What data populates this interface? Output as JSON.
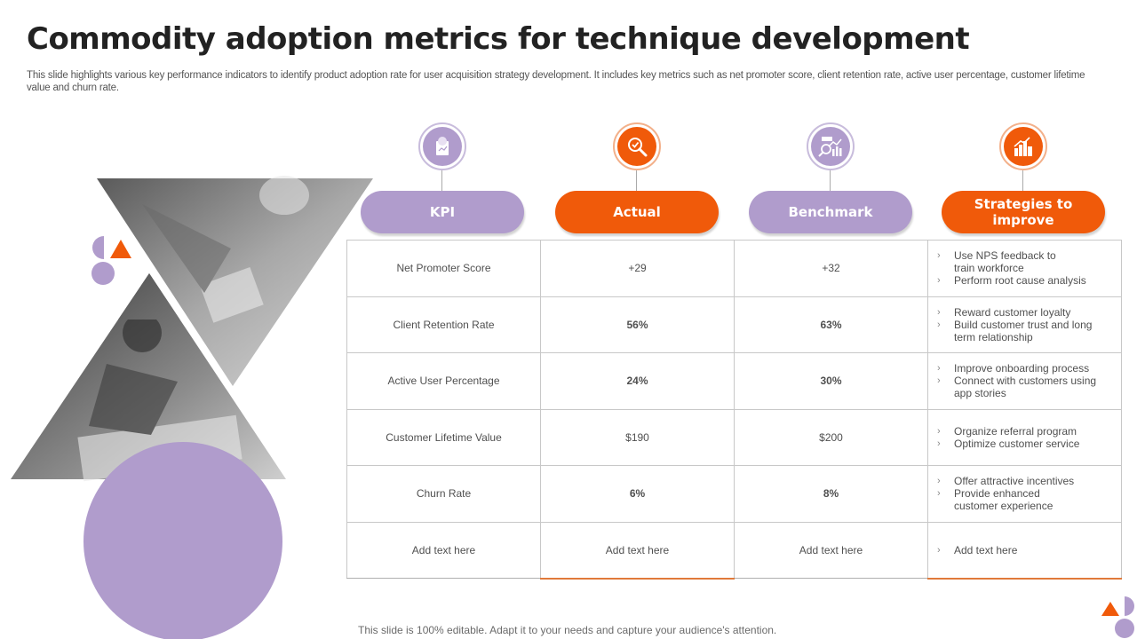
{
  "title": "Commodity adoption metrics for technique development",
  "subtitle": "This slide highlights various key performance indicators to identify product adoption rate for  user acquisition strategy development. It includes key metrics such as net promoter score, client retention rate, active user percentage, customer lifetime value and churn rate.",
  "colors": {
    "purple": "#b09ccc",
    "orange": "#f05a0a",
    "text": "#505050"
  },
  "headers": [
    {
      "label": "KPI",
      "icon": "clipboard-chart-icon",
      "color": "purple"
    },
    {
      "label": "Actual",
      "icon": "magnifier-check-icon",
      "color": "orange"
    },
    {
      "label": "Benchmark",
      "icon": "analytics-chart-icon",
      "color": "purple"
    },
    {
      "label": "Strategies to improve",
      "icon": "growth-bars-icon",
      "color": "orange"
    }
  ],
  "rows": [
    {
      "kpi": "Net Promoter Score",
      "actual": "+29",
      "benchmark": "+32",
      "strategies": [
        [
          "Use NPS feedback to",
          "train workforce"
        ],
        [
          "Perform root cause analysis"
        ]
      ]
    },
    {
      "kpi": "Client Retention Rate",
      "actual": "56%",
      "benchmark": "63%",
      "strategies": [
        [
          "Reward customer loyalty"
        ],
        [
          "Build customer trust and long",
          "term relationship"
        ]
      ]
    },
    {
      "kpi": "Active  User Percentage",
      "actual": "24%",
      "benchmark": "30%",
      "strategies": [
        [
          "Improve onboarding process"
        ],
        [
          "Connect with customers using",
          "app stories"
        ]
      ]
    },
    {
      "kpi": "Customer Lifetime Value",
      "actual": "$190",
      "benchmark": "$200",
      "strategies": [
        [
          "Organize referral program"
        ],
        [
          "Optimize customer service"
        ]
      ]
    },
    {
      "kpi": "Churn Rate",
      "actual": "6%",
      "benchmark": "8%",
      "strategies": [
        [
          "Offer attractive incentives"
        ],
        [
          "Provide enhanced",
          "customer experience"
        ]
      ]
    },
    {
      "kpi": "Add text here",
      "actual": "Add text here",
      "benchmark": "Add text here",
      "strategies": [
        [
          "Add text here"
        ]
      ]
    }
  ],
  "bullet_glyph": "›",
  "footer": "This slide is 100% editable. Adapt it to your needs and capture your audience's attention."
}
